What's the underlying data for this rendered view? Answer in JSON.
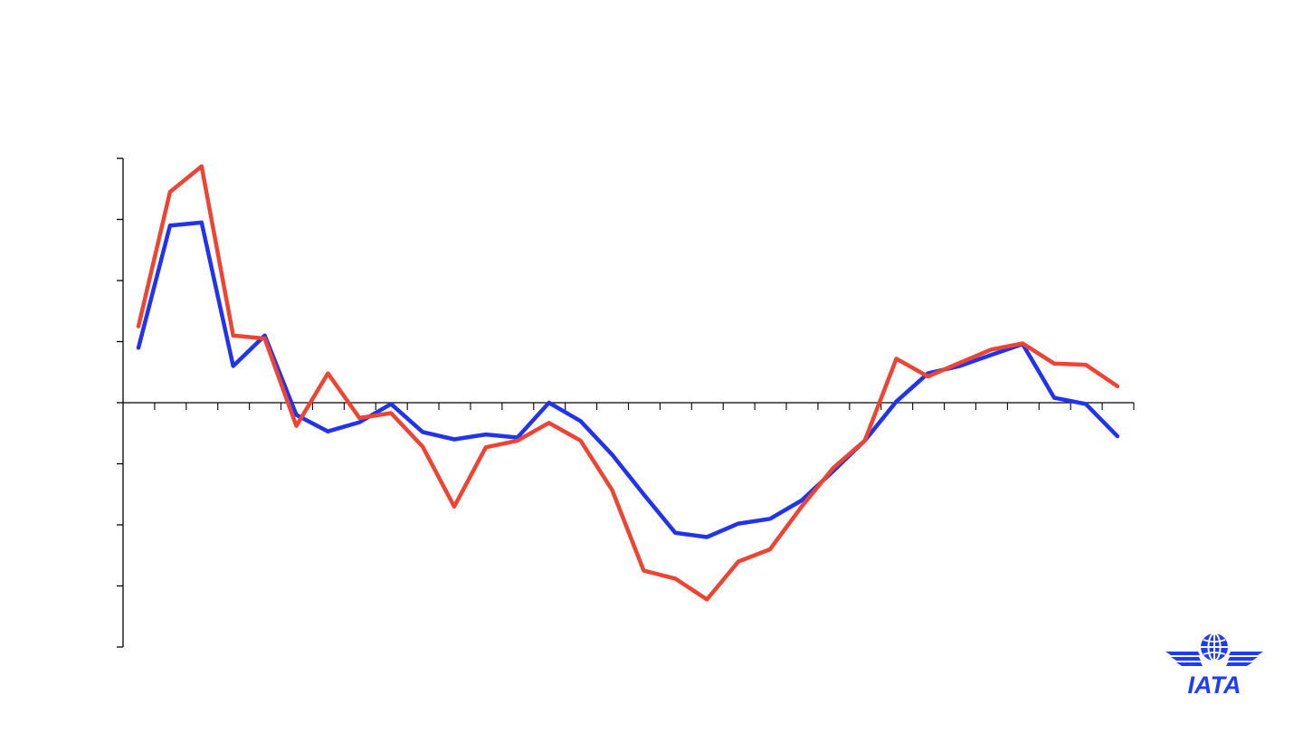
{
  "chart_data": {
    "type": "line",
    "title": "",
    "xlabel": "",
    "ylabel": "",
    "ylim": [
      -4,
      4
    ],
    "y_ticks": [
      -4,
      -3,
      -2,
      -1,
      0,
      1,
      2,
      3,
      4
    ],
    "x_tick_count": 32,
    "series": [
      {
        "color": "#2233ee",
        "values": [
          0.9,
          2.9,
          2.95,
          0.6,
          1.1,
          -0.2,
          -0.47,
          -0.32,
          -0.02,
          -0.48,
          -0.6,
          -0.52,
          -0.57,
          0.0,
          -0.3,
          -0.85,
          -1.5,
          -2.13,
          -2.2,
          -1.98,
          -1.9,
          -1.6,
          -1.12,
          -0.62,
          0.02,
          0.48,
          0.6,
          0.78,
          0.96,
          0.08,
          -0.02,
          -0.55
        ]
      },
      {
        "color": "#ee4433",
        "values": [
          1.25,
          3.45,
          3.87,
          1.1,
          1.05,
          -0.38,
          0.48,
          -0.25,
          -0.17,
          -0.72,
          -1.7,
          -0.73,
          -0.62,
          -0.33,
          -0.62,
          -1.43,
          -2.75,
          -2.88,
          -3.22,
          -2.6,
          -2.4,
          -1.7,
          -1.07,
          -0.62,
          0.72,
          0.43,
          0.65,
          0.87,
          0.97,
          0.64,
          0.62,
          0.27
        ]
      }
    ]
  },
  "logo": {
    "text": "IATA",
    "color": "#1e3cff"
  }
}
